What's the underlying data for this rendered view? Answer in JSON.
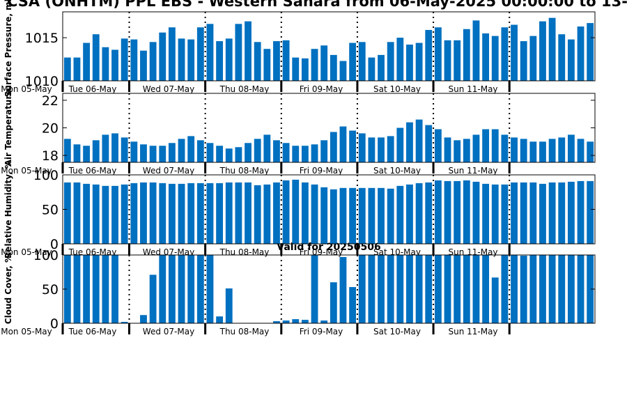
{
  "figure": {
    "title": "CSA (ONHTM) PPL EBS  - Western Sahara from 06-May-2025 00:00:00 to 13-",
    "valid_text": "Valid for 20250506",
    "colors": {
      "bar": "#0070c0",
      "axis": "#000000",
      "background": "#ffffff"
    }
  },
  "chart_data": [
    {
      "type": "bar",
      "ylabel": "Surface Pressure, mb",
      "ylim": [
        1010,
        1018
      ],
      "yticks": [
        "1010",
        "1015"
      ],
      "tick_labels": [
        "Mon 05-May",
        "Tue 06-May",
        "Wed 07-May",
        "Thu 08-May",
        "Fri 09-May",
        "Sat 10-May",
        "Sun 11-May"
      ],
      "values": [
        1012.7,
        1012.7,
        1014.4,
        1015.4,
        1013.9,
        1013.6,
        1014.9,
        1014.8,
        1013.5,
        1014.5,
        1015.6,
        1016.2,
        1014.9,
        1014.8,
        1016.2,
        1016.6,
        1014.6,
        1014.9,
        1016.6,
        1016.9,
        1014.5,
        1013.7,
        1014.6,
        1014.7,
        1012.7,
        1012.6,
        1013.7,
        1014.1,
        1013.0,
        1012.3,
        1014.4,
        1014.5,
        1012.7,
        1013.0,
        1014.5,
        1015.0,
        1014.2,
        1014.4,
        1015.9,
        1016.2,
        1014.7,
        1014.7,
        1016.0,
        1017.0,
        1015.5,
        1015.2,
        1016.2,
        1016.5,
        1014.6,
        1015.2,
        1016.9,
        1017.3,
        1015.4,
        1014.8,
        1016.3,
        1016.7
      ]
    },
    {
      "type": "bar",
      "ylabel": "Air Temperature",
      "ylim": [
        17.5,
        22.5
      ],
      "yticks": [
        "18",
        "20",
        "22"
      ],
      "tick_labels": [
        "Mon 05-May",
        "Tue 06-May",
        "Wed 07-May",
        "Thu 08-May",
        "Fri 09-May",
        "Sat 10-May",
        "Sun 11-May"
      ],
      "values": [
        19.2,
        18.8,
        18.7,
        19.1,
        19.5,
        19.6,
        19.3,
        19.0,
        18.8,
        18.7,
        18.7,
        18.9,
        19.2,
        19.4,
        19.1,
        18.9,
        18.7,
        18.5,
        18.6,
        18.9,
        19.2,
        19.5,
        19.1,
        18.9,
        18.7,
        18.7,
        18.8,
        19.1,
        19.7,
        20.1,
        19.8,
        19.6,
        19.3,
        19.3,
        19.4,
        20.0,
        20.4,
        20.6,
        20.2,
        19.9,
        19.3,
        19.1,
        19.2,
        19.5,
        19.9,
        19.9,
        19.5,
        19.3,
        19.2,
        19.0,
        19.0,
        19.2,
        19.3,
        19.5,
        19.2,
        19.0
      ]
    },
    {
      "type": "bar",
      "ylabel": "Relative Humidity, %",
      "ylim": [
        0,
        100
      ],
      "yticks": [
        "0",
        "50",
        "100"
      ],
      "tick_labels": [
        "Mon 05-May",
        "Tue 06-May",
        "Wed 07-May",
        "Thu 08-May",
        "Fri 09-May",
        "Sat 10-May",
        "Sun 11-May"
      ],
      "values": [
        89,
        89,
        87,
        86,
        84,
        84,
        86,
        88,
        89,
        89,
        88,
        87,
        87,
        88,
        88,
        88,
        88,
        89,
        89,
        89,
        85,
        86,
        89,
        92,
        93,
        89,
        86,
        82,
        79,
        81,
        81,
        81,
        81,
        81,
        80,
        84,
        86,
        88,
        89,
        92,
        91,
        91,
        92,
        90,
        87,
        86,
        86,
        89,
        89,
        89,
        87,
        89,
        89,
        90,
        91,
        91
      ]
    },
    {
      "type": "bar",
      "ylabel": "Cloud Cover, %",
      "ylim": [
        0,
        100
      ],
      "yticks": [
        "0",
        "50",
        "100"
      ],
      "tick_labels": [
        "Mon 05-May",
        "Tue 06-May",
        "Wed 07-May",
        "Thu 08-May",
        "Fri 09-May",
        "Sat 10-May",
        "Sun 11-May"
      ],
      "values": [
        100,
        100,
        100,
        100,
        100,
        100,
        2,
        0,
        12,
        71,
        100,
        100,
        100,
        100,
        100,
        100,
        10,
        51,
        0,
        0,
        0,
        0,
        3,
        4,
        6,
        5,
        100,
        4,
        60,
        97,
        53,
        100,
        100,
        100,
        100,
        100,
        100,
        100,
        100,
        100,
        100,
        100,
        100,
        100,
        100,
        67,
        100,
        100,
        99,
        100,
        100,
        100,
        100,
        100,
        100,
        100
      ]
    }
  ]
}
